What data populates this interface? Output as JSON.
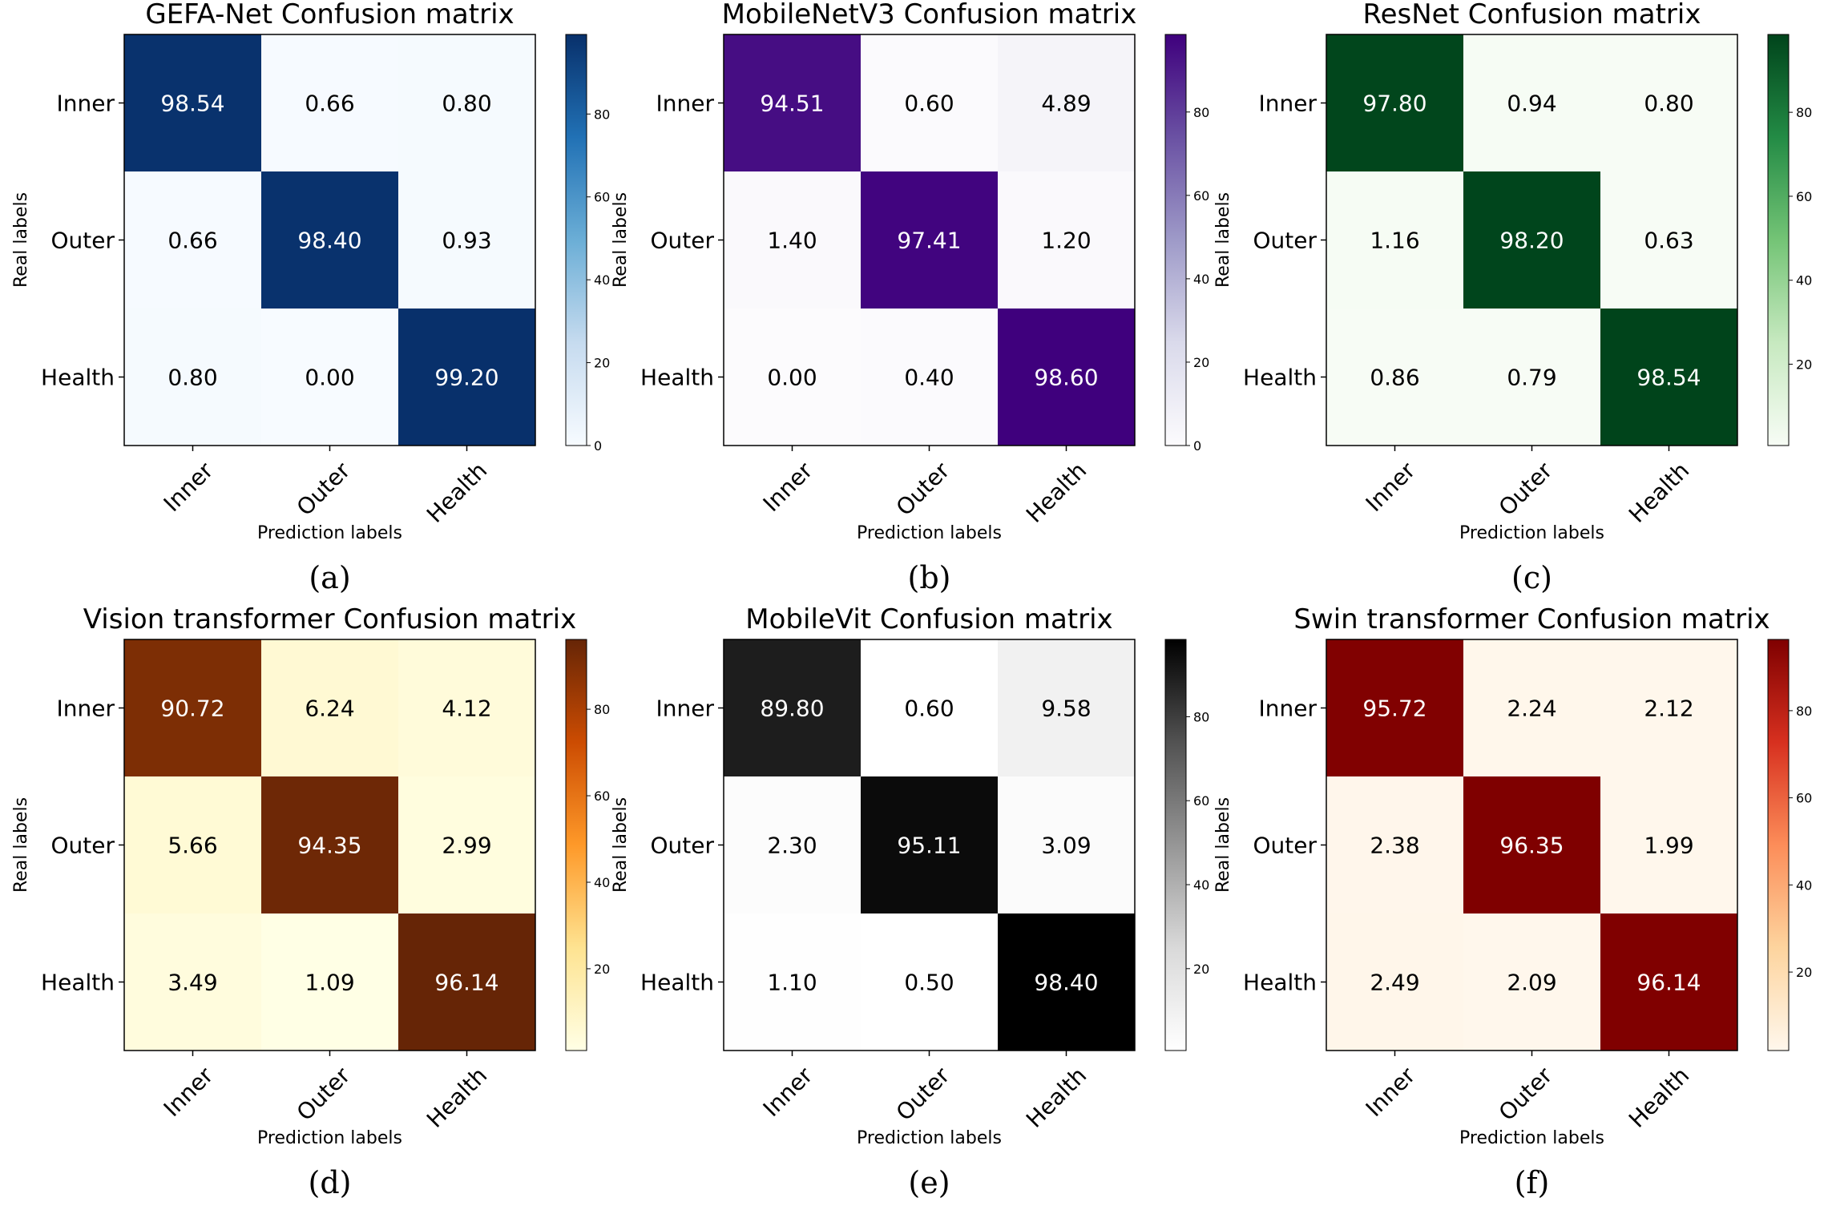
{
  "chart_data": [
    {
      "type": "heatmap",
      "title": "GEFA-Net Confusion matrix",
      "caption": "(a)",
      "colormap": "blues",
      "colors": [
        "#f7fbff",
        "#c6dbef",
        "#6baed6",
        "#2171b5",
        "#08306b"
      ],
      "rows": [
        "Inner",
        "Outer",
        "Health"
      ],
      "columns": [
        "Inner",
        "Outer",
        "Health"
      ],
      "values": [
        [
          98.54,
          0.66,
          0.8
        ],
        [
          0.66,
          98.4,
          0.93
        ],
        [
          0.8,
          0.0,
          99.2
        ]
      ],
      "xlabel": "Prediction labels",
      "ylabel": "Real labels",
      "colorbar_ticks": [
        0,
        20,
        40,
        60,
        80
      ],
      "colorbar_range": [
        0,
        99.2
      ]
    },
    {
      "type": "heatmap",
      "title": "MobileNetV3 Confusion matrix",
      "caption": "(b)",
      "colormap": "purples",
      "colors": [
        "#fcfbfd",
        "#dadaeb",
        "#9e9ac8",
        "#6a51a3",
        "#3f007d"
      ],
      "rows": [
        "Inner",
        "Outer",
        "Health"
      ],
      "columns": [
        "Inner",
        "Outer",
        "Health"
      ],
      "values": [
        [
          94.51,
          0.6,
          4.89
        ],
        [
          1.4,
          97.41,
          1.2
        ],
        [
          0.0,
          0.4,
          98.6
        ]
      ],
      "xlabel": "Prediction labels",
      "ylabel": "Real labels",
      "colorbar_ticks": [
        0,
        20,
        40,
        60,
        80
      ],
      "colorbar_range": [
        0,
        98.6
      ]
    },
    {
      "type": "heatmap",
      "title": "ResNet Confusion matrix",
      "caption": "(c)",
      "colormap": "greens",
      "colors": [
        "#f7fcf5",
        "#c7e9c0",
        "#74c476",
        "#238b45",
        "#00441b"
      ],
      "rows": [
        "Inner",
        "Outer",
        "Health"
      ],
      "columns": [
        "Inner",
        "Outer",
        "Health"
      ],
      "values": [
        [
          97.8,
          0.94,
          0.8
        ],
        [
          1.16,
          98.2,
          0.63
        ],
        [
          0.86,
          0.79,
          98.54
        ]
      ],
      "xlabel": "Prediction labels",
      "ylabel": "Real labels",
      "colorbar_ticks": [
        20,
        40,
        60,
        80
      ],
      "colorbar_range": [
        0.63,
        98.54
      ]
    },
    {
      "type": "heatmap",
      "title": "Vision transformer Confusion matrix",
      "caption": "(d)",
      "colormap": "ylorbr",
      "colors": [
        "#ffffe5",
        "#fee391",
        "#fe9929",
        "#cc4c02",
        "#662506"
      ],
      "rows": [
        "Inner",
        "Outer",
        "Health"
      ],
      "columns": [
        "Inner",
        "Outer",
        "Health"
      ],
      "values": [
        [
          90.72,
          6.24,
          4.12
        ],
        [
          5.66,
          94.35,
          2.99
        ],
        [
          3.49,
          1.09,
          96.14
        ]
      ],
      "xlabel": "Prediction labels",
      "ylabel": "Real labels",
      "colorbar_ticks": [
        20,
        40,
        60,
        80
      ],
      "colorbar_range": [
        1.09,
        96.14
      ]
    },
    {
      "type": "heatmap",
      "title": "MobileVit Confusion matrix",
      "caption": "(e)",
      "colormap": "greys",
      "colors": [
        "#ffffff",
        "#d9d9d9",
        "#969696",
        "#525252",
        "#000000"
      ],
      "rows": [
        "Inner",
        "Outer",
        "Health"
      ],
      "columns": [
        "Inner",
        "Outer",
        "Health"
      ],
      "values": [
        [
          89.8,
          0.6,
          9.58
        ],
        [
          2.3,
          95.11,
          3.09
        ],
        [
          1.1,
          0.5,
          98.4
        ]
      ],
      "xlabel": "Prediction labels",
      "ylabel": "Real labels",
      "colorbar_ticks": [
        20,
        40,
        60,
        80
      ],
      "colorbar_range": [
        0.5,
        98.4
      ]
    },
    {
      "type": "heatmap",
      "title": "Swin transformer Confusion matrix",
      "caption": "(f)",
      "colormap": "orrd",
      "colors": [
        "#fff7ec",
        "#fdd49e",
        "#fc8d59",
        "#d7301f",
        "#7f0000"
      ],
      "rows": [
        "Inner",
        "Outer",
        "Health"
      ],
      "columns": [
        "Inner",
        "Outer",
        "Health"
      ],
      "values": [
        [
          95.72,
          2.24,
          2.12
        ],
        [
          2.38,
          96.35,
          1.99
        ],
        [
          2.49,
          2.09,
          96.14
        ]
      ],
      "xlabel": "Prediction labels",
      "ylabel": "Real labels",
      "colorbar_ticks": [
        20,
        40,
        60,
        80
      ],
      "colorbar_range": [
        1.99,
        96.35
      ]
    }
  ]
}
